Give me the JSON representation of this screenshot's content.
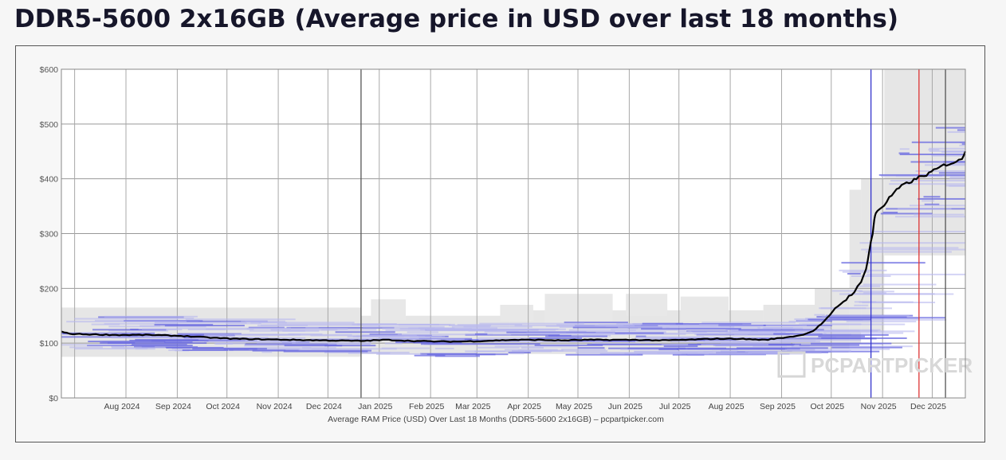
{
  "page": {
    "title": "DDR5-5600 2x16GB (Average price in USD over last 18 months)"
  },
  "chart_data": {
    "type": "line",
    "title": "DDR5-5600 2x16GB (Average price in USD over last 18 months)",
    "xlabel": "Average RAM Price (USD) Over Last 18 Months (DDR5-5600 2x16GB) – pcpartpicker.com",
    "ylabel": "",
    "ylim": [
      0,
      600
    ],
    "y_ticks": [
      0,
      100,
      200,
      300,
      400,
      500,
      600
    ],
    "y_tick_labels": [
      "$0",
      "$100",
      "$200",
      "$300",
      "$400",
      "$500",
      "$600"
    ],
    "x_tick_labels": [
      "Aug 2024",
      "Sep 2024",
      "Oct 2024",
      "Nov 2024",
      "Dec 2024",
      "Jan 2025",
      "Feb 2025",
      "Mar 2025",
      "Apr 2025",
      "May 2025",
      "Jun 2025",
      "Jul 2025",
      "Aug 2025",
      "Sep 2025",
      "Oct 2025",
      "Nov 2025",
      "Dec 2025"
    ],
    "x_range": [
      "2024-07-03",
      "2025-12-31"
    ],
    "grid": true,
    "watermark": "PCPARTPICKER",
    "vertical_markers": [
      {
        "date": "2024-12-31",
        "color": "#555555"
      },
      {
        "date": "2025-11-04",
        "color": "#3333cc"
      },
      {
        "date": "2025-12-03",
        "color": "#dd3333"
      },
      {
        "date": "2025-12-19",
        "color": "#555555"
      }
    ],
    "series": [
      {
        "name": "",
        "color": "#000000",
        "points": [
          [
            "2024-07-03",
            121
          ],
          [
            "2024-07-08",
            117
          ],
          [
            "2024-07-20",
            116
          ],
          [
            "2024-08-05",
            115
          ],
          [
            "2024-08-25",
            115
          ],
          [
            "2024-09-15",
            113
          ],
          [
            "2024-10-01",
            110
          ],
          [
            "2024-10-15",
            108
          ],
          [
            "2024-11-01",
            107
          ],
          [
            "2024-11-20",
            106
          ],
          [
            "2024-12-10",
            105
          ],
          [
            "2024-12-31",
            104
          ],
          [
            "2025-01-15",
            106
          ],
          [
            "2025-02-01",
            104
          ],
          [
            "2025-02-15",
            103
          ],
          [
            "2025-03-01",
            103
          ],
          [
            "2025-03-15",
            104
          ],
          [
            "2025-04-01",
            106
          ],
          [
            "2025-04-15",
            106
          ],
          [
            "2025-05-01",
            105
          ],
          [
            "2025-05-15",
            106
          ],
          [
            "2025-06-01",
            106
          ],
          [
            "2025-06-15",
            106
          ],
          [
            "2025-07-01",
            105
          ],
          [
            "2025-07-15",
            106
          ],
          [
            "2025-08-01",
            108
          ],
          [
            "2025-08-15",
            108
          ],
          [
            "2025-09-01",
            106
          ],
          [
            "2025-09-12",
            110
          ],
          [
            "2025-09-22",
            114
          ],
          [
            "2025-09-30",
            122
          ],
          [
            "2025-10-05",
            135
          ],
          [
            "2025-10-10",
            150
          ],
          [
            "2025-10-15",
            168
          ],
          [
            "2025-10-20",
            180
          ],
          [
            "2025-10-25",
            195
          ],
          [
            "2025-10-29",
            210
          ],
          [
            "2025-11-01",
            235
          ],
          [
            "2025-11-03",
            270
          ],
          [
            "2025-11-05",
            300
          ],
          [
            "2025-11-06",
            325
          ],
          [
            "2025-11-07",
            338
          ],
          [
            "2025-11-09",
            345
          ],
          [
            "2025-11-12",
            352
          ],
          [
            "2025-11-15",
            365
          ],
          [
            "2025-11-18",
            375
          ],
          [
            "2025-11-21",
            383
          ],
          [
            "2025-11-24",
            390
          ],
          [
            "2025-11-27",
            393
          ],
          [
            "2025-11-30",
            398
          ],
          [
            "2025-12-03",
            403
          ],
          [
            "2025-12-06",
            405
          ],
          [
            "2025-12-09",
            410
          ],
          [
            "2025-12-12",
            415
          ],
          [
            "2025-12-15",
            420
          ],
          [
            "2025-12-18",
            425
          ],
          [
            "2025-12-21",
            427
          ],
          [
            "2025-12-24",
            430
          ],
          [
            "2025-12-27",
            433
          ],
          [
            "2025-12-29",
            438
          ],
          [
            "2025-12-31",
            450
          ]
        ]
      }
    ]
  }
}
